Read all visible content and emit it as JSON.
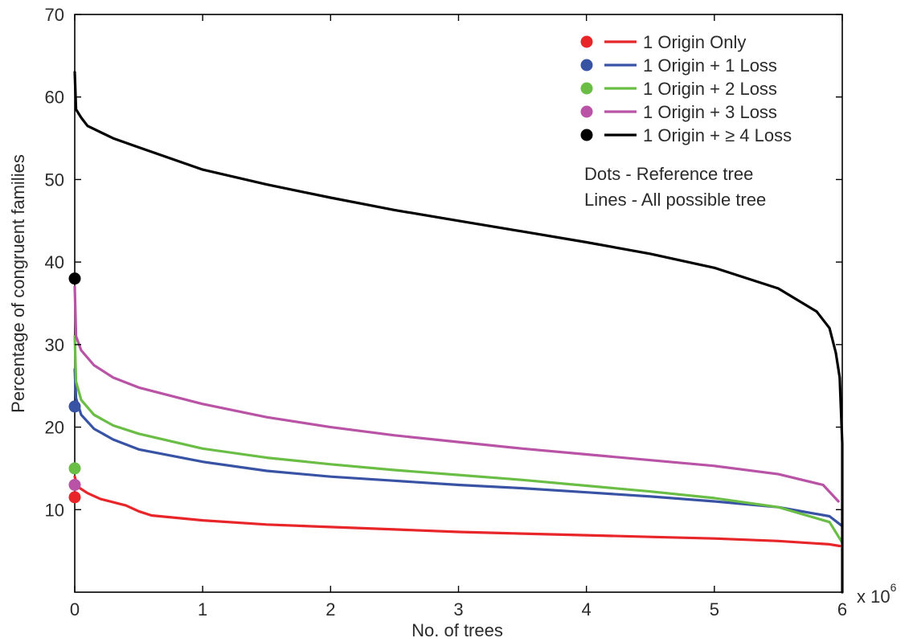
{
  "chart_data": {
    "type": "line",
    "xlabel": "No. of trees",
    "ylabel": "Percentage of congruent families",
    "x_multiplier_label": "x 10",
    "x_multiplier_exponent": "6",
    "xlim": [
      0,
      6
    ],
    "ylim": [
      0,
      70
    ],
    "xticks": [
      "0",
      "1",
      "2",
      "3",
      "4",
      "5",
      "6"
    ],
    "yticks": [
      "10",
      "20",
      "30",
      "40",
      "50",
      "60",
      "70"
    ],
    "grid": false,
    "legend_position": "top-right",
    "notes": [
      "Dots - Reference tree",
      "Lines - All possible tree"
    ],
    "series": [
      {
        "name": "1 Origin Only",
        "color": "#e8262a",
        "reference_dot": 11.5,
        "x": [
          0,
          0.02,
          0.1,
          0.2,
          0.4,
          0.5,
          0.6,
          1,
          1.5,
          2,
          2.5,
          3,
          3.5,
          4,
          4.5,
          5,
          5.5,
          5.9,
          5.98
        ],
        "y": [
          14,
          12.8,
          12,
          11.3,
          10.5,
          9.8,
          9.3,
          8.7,
          8.2,
          7.9,
          7.6,
          7.3,
          7.1,
          6.9,
          6.7,
          6.5,
          6.2,
          5.8,
          5.6
        ]
      },
      {
        "name": "1 Origin + 1 Loss",
        "color": "#3953a4",
        "reference_dot": 22.5,
        "x": [
          0,
          0.01,
          0.05,
          0.15,
          0.3,
          0.5,
          1,
          1.5,
          2,
          2.5,
          3,
          3.5,
          4,
          4.5,
          5,
          5.5,
          5.9,
          6
        ],
        "y": [
          27,
          23.5,
          21.5,
          19.8,
          18.5,
          17.3,
          15.8,
          14.7,
          14,
          13.5,
          13,
          12.6,
          12.1,
          11.6,
          11,
          10.3,
          9.2,
          8
        ]
      },
      {
        "name": "1 Origin + 2 Loss",
        "color": "#6abd45",
        "reference_dot": 15,
        "x": [
          0,
          0.01,
          0.05,
          0.15,
          0.3,
          0.5,
          1,
          1.5,
          2,
          2.5,
          3,
          3.5,
          4,
          4.5,
          5,
          5.5,
          5.9,
          6
        ],
        "y": [
          31,
          25.5,
          23.3,
          21.5,
          20.2,
          19.2,
          17.4,
          16.3,
          15.5,
          14.8,
          14.2,
          13.6,
          12.9,
          12.2,
          11.4,
          10.3,
          8.5,
          6
        ]
      },
      {
        "name": "1 Origin + 3 Loss",
        "color": "#b853a5",
        "reference_dot": 13,
        "x": [
          0,
          0.01,
          0.05,
          0.15,
          0.3,
          0.5,
          1,
          1.5,
          2,
          2.5,
          3,
          3.5,
          4,
          4.5,
          5,
          5.5,
          5.85,
          5.97
        ],
        "y": [
          37,
          31,
          29.3,
          27.5,
          26,
          24.8,
          22.8,
          21.2,
          20,
          19,
          18.2,
          17.4,
          16.7,
          16,
          15.3,
          14.3,
          13,
          11
        ]
      },
      {
        "name": "1 Origin + ≥ 4 Loss",
        "color": "#000000",
        "reference_dot": 38,
        "x": [
          0,
          0.01,
          0.05,
          0.1,
          0.3,
          0.5,
          1,
          1.5,
          2,
          2.5,
          3,
          3.5,
          4,
          4.5,
          5,
          5.5,
          5.8,
          5.9,
          5.95,
          5.98,
          6,
          6
        ],
        "y": [
          63,
          58.5,
          57.5,
          56.5,
          55,
          53.9,
          51.2,
          49.4,
          47.8,
          46.3,
          45,
          43.7,
          42.4,
          41,
          39.3,
          36.8,
          34,
          32,
          29,
          26,
          18,
          0
        ]
      }
    ]
  }
}
